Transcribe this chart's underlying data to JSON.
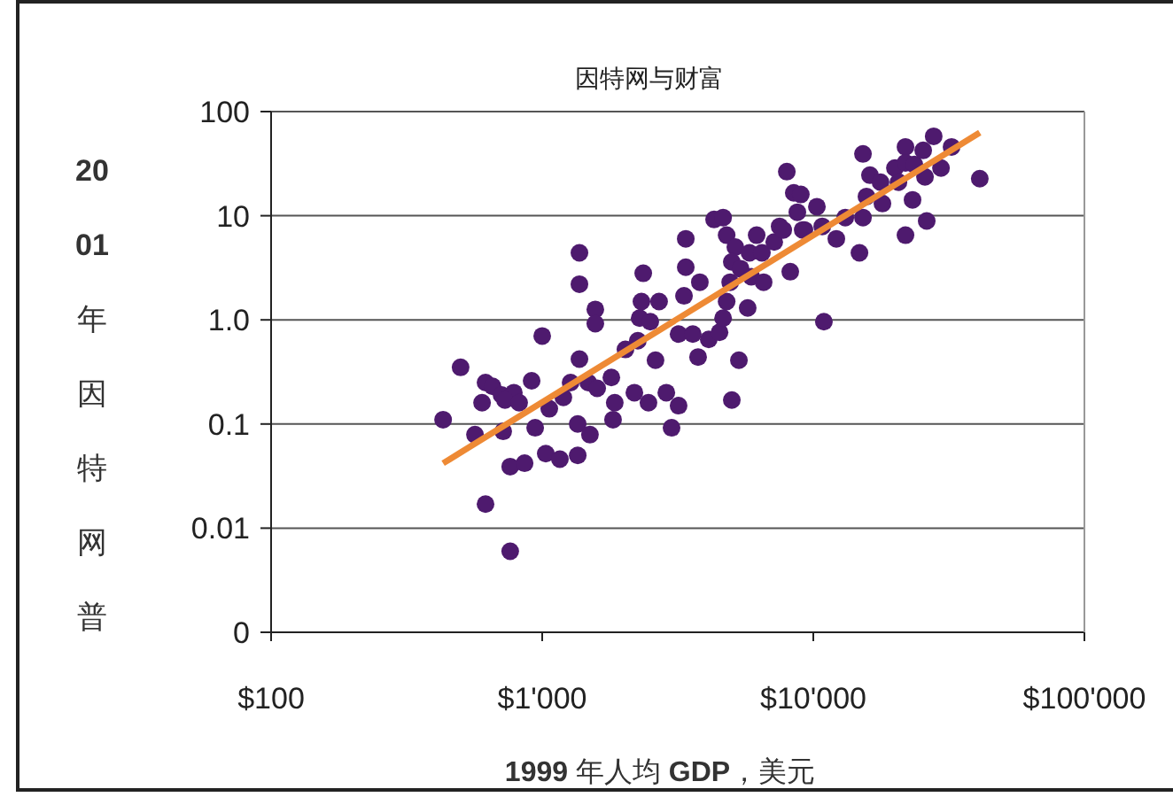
{
  "chart_data": {
    "type": "scatter",
    "title": "因特网与财富",
    "xlabel": "**1999** 年人均 **GDP**，美元",
    "ylabel": "**2001**年因特网普",
    "log": "xy",
    "grid": "y",
    "marker": "circle",
    "color": "#4e1a6e",
    "xlim": [
      100,
      100000
    ],
    "ylim": [
      0.001,
      100
    ],
    "xticks": [
      {
        "value": 100,
        "label": "$100"
      },
      {
        "value": 1000,
        "label": "$1'000"
      },
      {
        "value": 10000,
        "label": "$10'000"
      },
      {
        "value": 100000,
        "label": "$100'000"
      }
    ],
    "yticks": [
      {
        "value": 0.001,
        "label": "0"
      },
      0.01,
      0.1,
      {
        "value": 1,
        "label": "1.0"
      },
      10,
      100
    ],
    "x": [
      431,
      500,
      618,
      656,
      600,
      708,
      786,
      729,
      822,
      914,
      1000,
      565,
      718,
      1062,
      942,
      762,
      861,
      1031,
      1162,
      1352,
      1352,
      618,
      762,
      1372,
      1372,
      1372,
      1273,
      1197,
      1570,
      1570,
      1500,
      1479,
      1595,
      1799,
      1852,
      1825,
      2188,
      2466,
      2870,
      3185,
      3000,
      2618,
      2028,
      2253,
      2359,
      2323,
      2698,
      2288,
      2504,
      3385,
      3385,
      3335,
      3815,
      3185,
      3593,
      3758,
      4115,
      4508,
      4648,
      5005,
      5316,
      4306,
      4648,
      4790,
      5157,
      5005,
      5394,
      6181,
      5816,
      6463,
      5906,
      6557,
      5727,
      4937,
      4790,
      7176,
      7513,
      8223,
      7985,
      8472,
      8995,
      8733,
      9271,
      10310,
      10790,
      10940,
      12160,
      7745,
      13120,
      15250,
      16180,
      17700,
      15710,
      17990,
      15250,
      14800,
      20000,
      21880,
      21880,
      23590,
      25430,
      27800,
      32360,
      29580,
      25820,
      23230,
      26200,
      21880,
      41120,
      20610,
      9141
    ],
    "values": [
      0.11,
      0.35,
      0.25,
      0.23,
      0.16,
      0.19,
      0.2,
      0.17,
      0.16,
      0.26,
      0.7,
      0.079,
      0.085,
      0.14,
      0.092,
      0.039,
      0.042,
      0.052,
      0.046,
      0.05,
      0.1,
      0.017,
      0.006,
      4.4,
      2.2,
      0.42,
      0.25,
      0.18,
      1.26,
      0.92,
      0.079,
      0.25,
      0.22,
      0.28,
      0.16,
      0.11,
      0.2,
      0.16,
      0.2,
      0.15,
      0.092,
      0.41,
      0.52,
      0.63,
      2.8,
      1.5,
      1.5,
      1.04,
      0.96,
      6,
      3.2,
      1.7,
      2.3,
      0.73,
      0.73,
      0.44,
      0.65,
      0.76,
      1.04,
      0.17,
      0.41,
      9.2,
      9.6,
      6.5,
      5,
      3.6,
      3.1,
      6.5,
      4.4,
      4.4,
      2.6,
      2.3,
      1.3,
      2.3,
      1.5,
      5.6,
      7.9,
      2.9,
      26.5,
      16.6,
      16,
      10.8,
      7.3,
      12.2,
      7.9,
      0.96,
      6,
      7.3,
      9.6,
      39.2,
      24.5,
      21,
      15.3,
      13.1,
      9.6,
      4.4,
      28.7,
      45.8,
      32.2,
      31,
      42.4,
      57.9,
      45.8,
      28.7,
      23.6,
      14.2,
      8.9,
      6.5,
      22.7,
      21,
      7.3
    ],
    "series": [
      {
        "type": "line",
        "color": "#ee8a35",
        "marker": "none",
        "x": [
          431,
          41120
        ],
        "values": [
          0.042,
          62.7
        ]
      }
    ]
  }
}
